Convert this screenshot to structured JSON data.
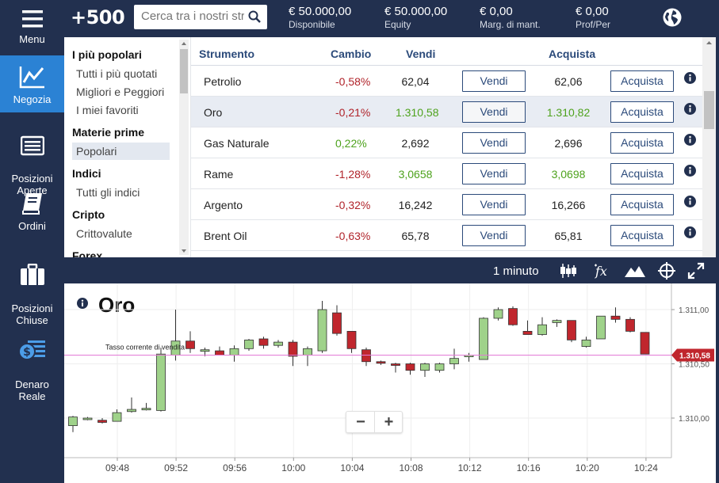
{
  "nav": {
    "menu": "Menu",
    "trade": "Negozia",
    "open_positions": "Posizioni\nAperte",
    "orders": "Ordini",
    "closed_positions": "Posizioni\nChiuse",
    "real_money": "Denaro\nReale"
  },
  "topbar": {
    "logo": "+500",
    "search_placeholder": "Cerca tra i nostri strumenti",
    "available_value": "€ 50.000,00",
    "available_label": "Disponibile",
    "equity_value": "€ 50.000,00",
    "equity_label": "Equity",
    "margin_value": "€ 0,00",
    "margin_label": "Marg. di mant.",
    "pl_value": "€ 0,00",
    "pl_label": "Prof/Per"
  },
  "categories": {
    "popular_head": "I più popolari",
    "popular_items": [
      "Tutti i più quotati",
      "Migliori e Peggiori",
      "I miei favoriti"
    ],
    "commodities_head": "Materie prime",
    "commodities_items": [
      "Popolari"
    ],
    "indices_head": "Indici",
    "indices_items": [
      "Tutti gli indici"
    ],
    "crypto_head": "Cripto",
    "crypto_items": [
      "Crittovalute"
    ],
    "forex_head": "Forex"
  },
  "table": {
    "headers": {
      "instrument": "Strumento",
      "change": "Cambio",
      "sell": "Vendi",
      "buy": "Acquista"
    },
    "sell_btn": "Vendi",
    "buy_btn": "Acquista",
    "rows": [
      {
        "name": "Petrolio",
        "change": "-0,58%",
        "change_dir": "neg",
        "sell": "62,04",
        "buy": "62,06",
        "price_dir": "none"
      },
      {
        "name": "Oro",
        "change": "-0,21%",
        "change_dir": "neg",
        "sell": "1.310,58",
        "buy": "1.310,82",
        "price_dir": "pos"
      },
      {
        "name": "Gas Naturale",
        "change": "0,22%",
        "change_dir": "pos",
        "sell": "2,692",
        "buy": "2,696",
        "price_dir": "none"
      },
      {
        "name": "Rame",
        "change": "-1,28%",
        "change_dir": "neg",
        "sell": "3,0658",
        "buy": "3,0698",
        "price_dir": "pos"
      },
      {
        "name": "Argento",
        "change": "-0,32%",
        "change_dir": "neg",
        "sell": "16,242",
        "buy": "16,266",
        "price_dir": "none"
      },
      {
        "name": "Brent Oil",
        "change": "-0,63%",
        "change_dir": "neg",
        "sell": "65,78",
        "buy": "65,81",
        "price_dir": "none"
      }
    ]
  },
  "chartbar": {
    "timeframe": "1 minuto"
  },
  "chart_data": {
    "type": "candlestick",
    "title": "Oro",
    "current_rate_label": "Tasso corrente di vendita",
    "current_rate": 1310.58,
    "current_rate_text": "1.310,58",
    "y_ticks": [
      {
        "v": 1311.0,
        "t": "1.311,00"
      },
      {
        "v": 1310.5,
        "t": "1.310,50"
      },
      {
        "v": 1310.0,
        "t": "1.310,00"
      }
    ],
    "x_ticks": [
      "09:48",
      "09:52",
      "09:56",
      "10:00",
      "10:04",
      "10:08",
      "10:12",
      "10:16",
      "10:20",
      "10:24"
    ],
    "colors": {
      "up": "#9fd28a",
      "down": "#c0262d",
      "rate_line": "#e27ad6",
      "rate_tag": "#c0262d"
    },
    "candles": [
      {
        "o": 1309.93,
        "h": 1310.02,
        "l": 1309.87,
        "c": 1310.01
      },
      {
        "o": 1310.0,
        "h": 1310.01,
        "l": 1309.98,
        "c": 1310.0
      },
      {
        "o": 1309.98,
        "h": 1310.0,
        "l": 1309.95,
        "c": 1309.96
      },
      {
        "o": 1309.97,
        "h": 1310.08,
        "l": 1309.97,
        "c": 1310.05
      },
      {
        "o": 1310.06,
        "h": 1310.19,
        "l": 1310.05,
        "c": 1310.08
      },
      {
        "o": 1310.08,
        "h": 1310.14,
        "l": 1310.07,
        "c": 1310.09
      },
      {
        "o": 1310.07,
        "h": 1310.65,
        "l": 1310.06,
        "c": 1310.59
      },
      {
        "o": 1310.58,
        "h": 1311.0,
        "l": 1310.53,
        "c": 1310.71
      },
      {
        "o": 1310.71,
        "h": 1310.8,
        "l": 1310.6,
        "c": 1310.64
      },
      {
        "o": 1310.63,
        "h": 1310.65,
        "l": 1310.57,
        "c": 1310.63
      },
      {
        "o": 1310.62,
        "h": 1310.66,
        "l": 1310.58,
        "c": 1310.58
      },
      {
        "o": 1310.58,
        "h": 1310.67,
        "l": 1310.52,
        "c": 1310.64
      },
      {
        "o": 1310.64,
        "h": 1310.73,
        "l": 1310.62,
        "c": 1310.72
      },
      {
        "o": 1310.73,
        "h": 1310.75,
        "l": 1310.64,
        "c": 1310.67
      },
      {
        "o": 1310.67,
        "h": 1310.72,
        "l": 1310.65,
        "c": 1310.7
      },
      {
        "o": 1310.7,
        "h": 1310.72,
        "l": 1310.48,
        "c": 1310.57
      },
      {
        "o": 1310.58,
        "h": 1310.66,
        "l": 1310.48,
        "c": 1310.64
      },
      {
        "o": 1310.62,
        "h": 1311.08,
        "l": 1310.6,
        "c": 1311.0
      },
      {
        "o": 1310.97,
        "h": 1311.04,
        "l": 1310.76,
        "c": 1310.78
      },
      {
        "o": 1310.8,
        "h": 1310.8,
        "l": 1310.6,
        "c": 1310.64
      },
      {
        "o": 1310.63,
        "h": 1310.65,
        "l": 1310.48,
        "c": 1310.52
      },
      {
        "o": 1310.52,
        "h": 1310.53,
        "l": 1310.49,
        "c": 1310.51
      },
      {
        "o": 1310.5,
        "h": 1310.51,
        "l": 1310.42,
        "c": 1310.49
      },
      {
        "o": 1310.5,
        "h": 1310.51,
        "l": 1310.4,
        "c": 1310.44
      },
      {
        "o": 1310.44,
        "h": 1310.51,
        "l": 1310.38,
        "c": 1310.5
      },
      {
        "o": 1310.44,
        "h": 1310.51,
        "l": 1310.42,
        "c": 1310.5
      },
      {
        "o": 1310.5,
        "h": 1310.64,
        "l": 1310.45,
        "c": 1310.55
      },
      {
        "o": 1310.58,
        "h": 1310.6,
        "l": 1310.52,
        "c": 1310.58
      },
      {
        "o": 1310.54,
        "h": 1310.93,
        "l": 1310.54,
        "c": 1310.92
      },
      {
        "o": 1310.92,
        "h": 1311.02,
        "l": 1310.9,
        "c": 1311.0
      },
      {
        "o": 1311.01,
        "h": 1311.03,
        "l": 1310.85,
        "c": 1310.86
      },
      {
        "o": 1310.8,
        "h": 1310.9,
        "l": 1310.77,
        "c": 1310.77
      },
      {
        "o": 1310.77,
        "h": 1310.93,
        "l": 1310.76,
        "c": 1310.86
      },
      {
        "o": 1310.88,
        "h": 1310.91,
        "l": 1310.84,
        "c": 1310.9
      },
      {
        "o": 1310.9,
        "h": 1310.9,
        "l": 1310.7,
        "c": 1310.72
      },
      {
        "o": 1310.66,
        "h": 1310.75,
        "l": 1310.65,
        "c": 1310.72
      },
      {
        "o": 1310.73,
        "h": 1310.94,
        "l": 1310.73,
        "c": 1310.94
      },
      {
        "o": 1310.94,
        "h": 1311.02,
        "l": 1310.88,
        "c": 1310.91
      },
      {
        "o": 1310.91,
        "h": 1310.93,
        "l": 1310.79,
        "c": 1310.8
      },
      {
        "o": 1310.79,
        "h": 1310.79,
        "l": 1310.59,
        "c": 1310.59
      }
    ]
  }
}
